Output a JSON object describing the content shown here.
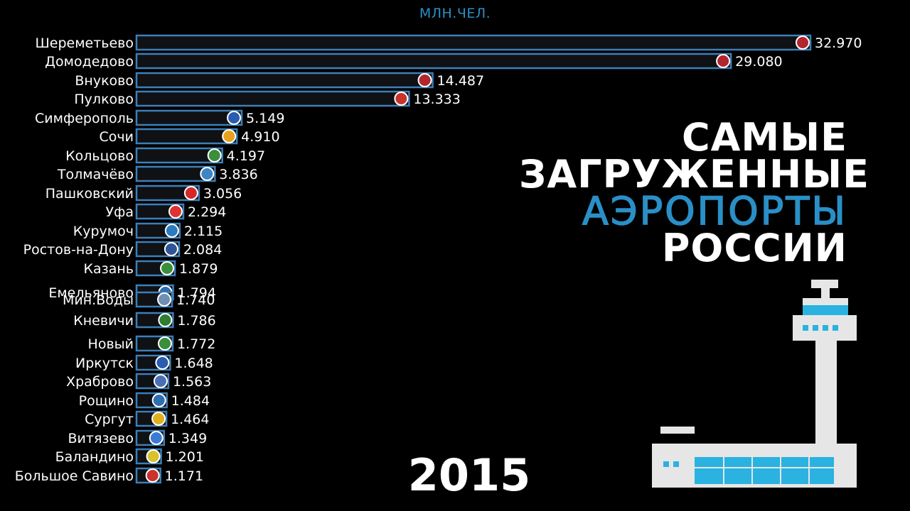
{
  "unit": "МЛН.ЧЕЛ.",
  "title": {
    "line1": "САМЫЕ",
    "line2": "ЗАГРУЖЕННЫЕ",
    "line3": "АЭРОПОРТЫ",
    "line4": "РОССИИ"
  },
  "year": "2015",
  "colors": {
    "background": "#000000",
    "bar_fill": "#0f1114",
    "bar_border": "#3d7fb8",
    "accent": "#2a8fc7",
    "text": "#ffffff"
  },
  "chart_data": {
    "type": "bar",
    "orientation": "horizontal",
    "unit": "МЛН.ЧЕЛ.",
    "year": "2015",
    "categories": [
      "Шереметьево",
      "Домодедово",
      "Внуково",
      "Пулково",
      "Симферополь",
      "Сочи",
      "Кольцово",
      "Толмачёво",
      "Пашковский",
      "Уфа",
      "Курумоч",
      "Ростов-на-Дону",
      "Казань",
      "Емельяново",
      "Мин.Воды",
      "Кневичи",
      "Новый",
      "Иркутск",
      "Храброво",
      "Рощино",
      "Сургут",
      "Витязево",
      "Баландино",
      "Большое Савино"
    ],
    "values": [
      32.97,
      29.08,
      14.487,
      13.333,
      5.149,
      4.91,
      4.197,
      3.836,
      3.056,
      2.294,
      2.115,
      2.084,
      1.879,
      1.794,
      1.74,
      1.786,
      1.772,
      1.648,
      1.563,
      1.484,
      1.464,
      1.349,
      1.201,
      1.171
    ],
    "value_labels": [
      "32.970",
      "29.080",
      "14.487",
      "13.333",
      "5.149",
      "4.910",
      "4.197",
      "3.836",
      "3.056",
      "2.294",
      "2.115",
      "2.084",
      "1.879",
      "1.794",
      "1.740",
      "1.786",
      "1.772",
      "1.648",
      "1.563",
      "1.484",
      "1.464",
      "1.349",
      "1.201",
      "1.171"
    ],
    "emblem_colors": [
      "#b3262f",
      "#b3262f",
      "#b3262f",
      "#c8332a",
      "#2a5db0",
      "#e9a21b",
      "#3a8f3a",
      "#3d85c6",
      "#d62828",
      "#e03131",
      "#2b7bbf",
      "#2f5597",
      "#3a8f3a",
      "#2f6fb0",
      "#6f8fb3",
      "#2e7d32",
      "#3a8f3a",
      "#2a5db0",
      "#4a6fb5",
      "#2f6fb0",
      "#e0b020",
      "#3b7bd6",
      "#d8c22f",
      "#c8332a"
    ],
    "xlim": [
      0,
      32.97
    ]
  }
}
